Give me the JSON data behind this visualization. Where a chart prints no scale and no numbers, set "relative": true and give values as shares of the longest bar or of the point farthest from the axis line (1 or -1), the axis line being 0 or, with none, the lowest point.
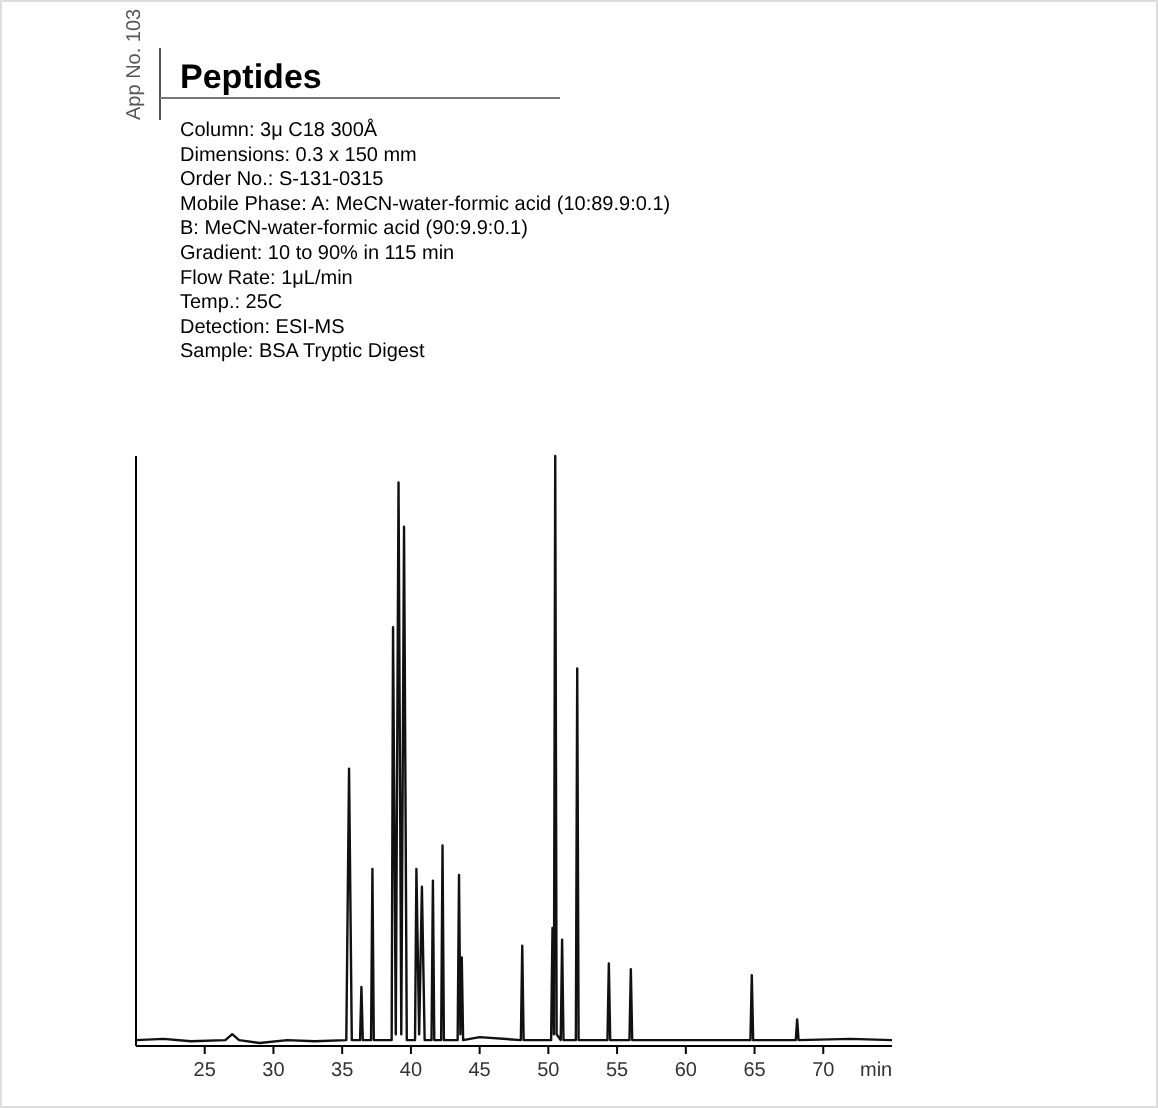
{
  "chart_data": {
    "type": "line",
    "title": "Peptides",
    "subtitle": "App No. 103",
    "xlabel": "min",
    "relative": true,
    "annotations": [
      "Column: 3μ C18 300Å",
      "Dimensions: 0.3 x 150 mm",
      "Order No.: S-131-0315",
      "Mobile Phase: A: MeCN-water-formic acid (10:89.9:0.1)",
      "B: MeCN-water-formic acid (90:9.9:0.1)",
      "Gradient: 10 to 90% in 115 min",
      "Flow Rate: 1μL/min",
      "Temp.: 25C",
      "Detection: ESI-MS",
      "Sample: BSA Tryptic Digest"
    ],
    "xlim": [
      20,
      75
    ],
    "xticks": [
      25,
      30,
      35,
      40,
      45,
      50,
      55,
      60,
      65,
      70
    ],
    "series": [
      {
        "color": "#111111",
        "x": [
          20,
          22,
          24,
          26.5,
          27,
          27.5,
          29,
          31,
          33,
          35.3,
          35.5,
          35.7,
          36.3,
          36.4,
          36.5,
          37.1,
          37.2,
          37.3,
          38.6,
          38.7,
          38.9,
          39.1,
          39.3,
          39.5,
          39.7,
          40.3,
          40.4,
          40.6,
          40.8,
          41,
          41.5,
          41.6,
          41.7,
          42.2,
          42.3,
          42.4,
          43.4,
          43.5,
          43.6,
          43.7,
          43.8,
          45,
          48,
          48.1,
          48.2,
          50.2,
          50.3,
          50.4,
          50.5,
          50.6,
          50.9,
          51,
          51.1,
          52,
          52.1,
          52.2,
          54.3,
          54.4,
          54.5,
          55.9,
          56,
          56.1,
          60,
          64.7,
          64.8,
          64.9,
          68,
          68.1,
          68.2,
          72,
          75
        ],
        "values": [
          0.01,
          0.012,
          0.008,
          0.01,
          0.02,
          0.01,
          0.005,
          0.01,
          0.008,
          0.01,
          0.47,
          0.01,
          0.01,
          0.1,
          0.01,
          0.01,
          0.3,
          0.01,
          0.01,
          0.71,
          0.02,
          0.955,
          0.02,
          0.88,
          0.01,
          0.01,
          0.3,
          0.02,
          0.27,
          0.01,
          0.01,
          0.28,
          0.01,
          0.01,
          0.34,
          0.01,
          0.01,
          0.29,
          0.02,
          0.15,
          0.01,
          0.015,
          0.01,
          0.17,
          0.01,
          0.01,
          0.2,
          0.02,
          1,
          0.02,
          0.01,
          0.18,
          0.01,
          0.01,
          0.64,
          0.01,
          0.01,
          0.14,
          0.01,
          0.01,
          0.13,
          0.01,
          0.01,
          0.01,
          0.12,
          0.01,
          0.01,
          0.045,
          0.01,
          0.012,
          0.01
        ]
      }
    ]
  }
}
